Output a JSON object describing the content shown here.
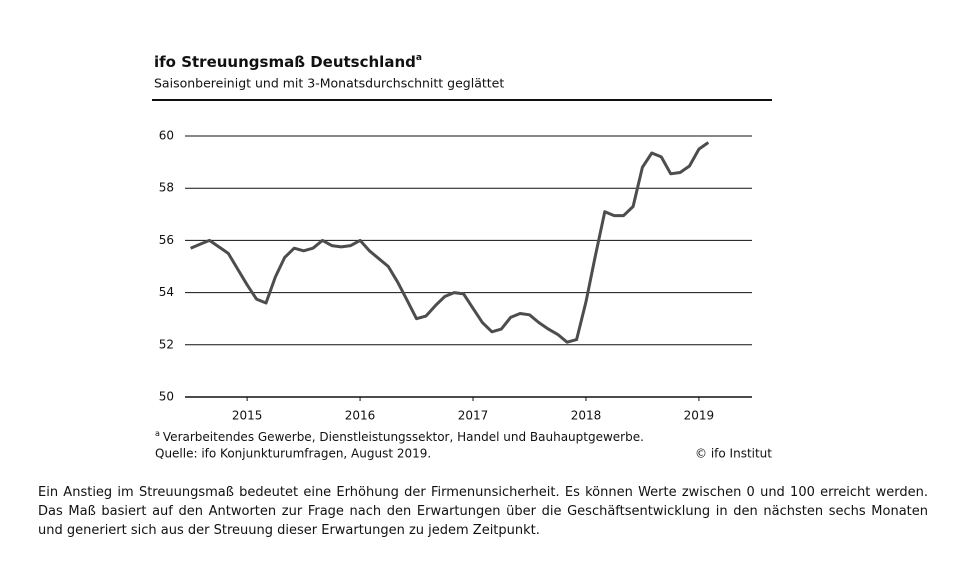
{
  "chart_data": {
    "type": "line",
    "title": "ifo Streuungsmaß Deutschland",
    "title_note": "a",
    "subtitle": "Saisonbereinigt und mit 3-Monatsdurchschnitt geglättet",
    "x": [
      2015,
      2015.083,
      2015.167,
      2015.25,
      2015.333,
      2015.417,
      2015.5,
      2015.583,
      2015.667,
      2015.75,
      2015.833,
      2015.917,
      2016,
      2016.083,
      2016.167,
      2016.25,
      2016.333,
      2016.417,
      2016.5,
      2016.583,
      2016.667,
      2016.75,
      2016.833,
      2016.917,
      2017,
      2017.083,
      2017.167,
      2017.25,
      2017.333,
      2017.417,
      2017.5,
      2017.583,
      2017.667,
      2017.75,
      2017.833,
      2017.917,
      2018,
      2018.083,
      2018.167,
      2018.25,
      2018.333,
      2018.417,
      2018.5,
      2018.583,
      2018.667,
      2018.75,
      2018.833,
      2018.917,
      2019,
      2019.083,
      2019.167,
      2019.25,
      2019.333,
      2019.417,
      2019.5,
      2019.583
    ],
    "series": [
      {
        "name": "Streuungsmaß",
        "color": "#4d4d4d",
        "values": [
          55.7,
          55.85,
          56.0,
          55.75,
          55.5,
          54.9,
          54.3,
          53.75,
          53.6,
          54.6,
          55.35,
          55.7,
          55.6,
          55.7,
          56.0,
          55.8,
          55.75,
          55.8,
          56.0,
          55.6,
          55.3,
          55.0,
          54.4,
          53.7,
          53.0,
          53.1,
          53.5,
          53.85,
          54.0,
          53.95,
          53.4,
          52.85,
          52.5,
          52.6,
          53.05,
          53.2,
          53.15,
          52.85,
          52.6,
          52.4,
          52.1,
          52.2,
          53.65,
          55.4,
          57.1,
          56.95,
          56.95,
          57.3,
          58.8,
          59.35,
          59.2,
          58.55,
          58.6,
          58.85,
          59.5,
          59.75
        ]
      }
    ],
    "xlim": [
      2014.95,
      2019.97
    ],
    "xticks": [
      {
        "value": 2015.5,
        "label": "2015"
      },
      {
        "value": 2016.5,
        "label": "2016"
      },
      {
        "value": 2017.5,
        "label": "2017"
      },
      {
        "value": 2018.5,
        "label": "2018"
      },
      {
        "value": 2019.5,
        "label": "2019"
      }
    ],
    "ylim": [
      50,
      60
    ],
    "yticks": [
      50,
      52,
      54,
      56,
      58,
      60
    ],
    "grid": true,
    "footnote_marker": "a",
    "footnote": "Verarbeitendes Gewerbe, Dienstleistungssektor, Handel und Bauhauptgewerbe.",
    "source": "Quelle: ifo Konjunkturumfragen, August 2019.",
    "copyright": "© ifo Institut"
  },
  "description": "Ein Anstieg im Streuungsmaß bedeutet eine Erhöhung der Firmenunsicherheit. Es können Werte zwischen 0 und 100 erreicht werden. Das Maß basiert auf den Antworten zur Frage nach den Erwartungen über die Geschäftsentwicklung in den nächsten sechs Monaten und generiert sich aus der Streuung dieser Erwartungen zu jedem Zeitpunkt."
}
